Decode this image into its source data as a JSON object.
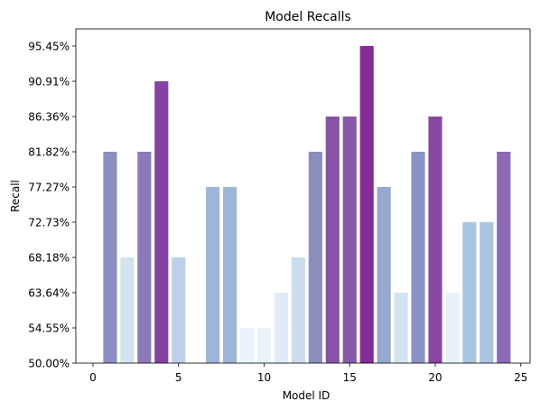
{
  "chart_data": {
    "type": "bar",
    "title": "Model Recalls",
    "xlabel": "Model ID",
    "ylabel": "Recall",
    "x": [
      1,
      2,
      3,
      4,
      5,
      6,
      7,
      8,
      9,
      10,
      11,
      12,
      13,
      14,
      15,
      16,
      17,
      18,
      19,
      20,
      21,
      22,
      23,
      24
    ],
    "values": [
      81.82,
      68.18,
      81.82,
      90.91,
      68.18,
      50.0,
      77.27,
      77.27,
      54.55,
      54.55,
      63.64,
      68.18,
      81.82,
      86.36,
      86.36,
      95.45,
      77.27,
      63.64,
      81.82,
      86.36,
      63.64,
      72.73,
      72.73,
      81.82
    ],
    "colors": [
      "#8c8fc0",
      "#d4e2f0",
      "#8c7ab8",
      "#8443a0",
      "#bcd1e8",
      "#f7fbff",
      "#9db6d8",
      "#9db6d8",
      "#eaf2fb",
      "#eaf2fb",
      "#e0ebf6",
      "#ccdcee",
      "#8e8dc0",
      "#8853a6",
      "#8857a8",
      "#842c96",
      "#96a8d0",
      "#d4e2f0",
      "#8c93c3",
      "#8848a2",
      "#e8f0f9",
      "#a8c4e0",
      "#a8c4e0",
      "#8d6ab4"
    ],
    "xticks": [
      0,
      5,
      10,
      15,
      20,
      25
    ],
    "xtick_labels": [
      "0",
      "5",
      "10",
      "15",
      "20",
      "25"
    ],
    "yticks": [
      50.0,
      54.55,
      63.64,
      68.18,
      72.73,
      77.27,
      81.82,
      86.36,
      90.91,
      95.45
    ],
    "ytick_labels": [
      "50.00%",
      "54.55%",
      "63.64%",
      "68.18%",
      "72.73%",
      "77.27%",
      "81.82%",
      "86.36%",
      "90.91%",
      "95.45%"
    ],
    "ylim": [
      50.0,
      100.0
    ],
    "xlim": [
      -0.15,
      25.6
    ],
    "grid": false
  }
}
